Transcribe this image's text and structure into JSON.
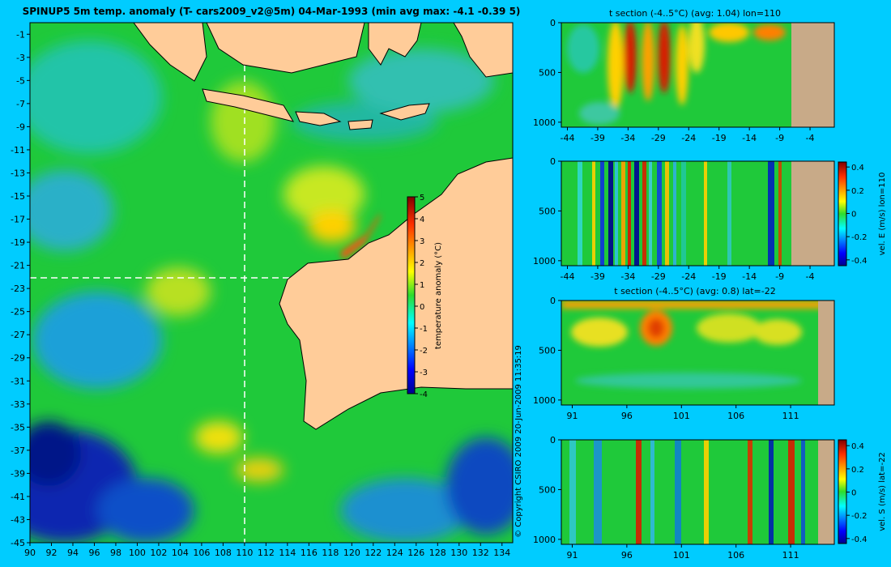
{
  "chart_data": [
    {
      "type": "heatmap",
      "title": "SPINUP5 5m temp. anomaly (T- cars2009_v2@5m) 04-Mar-1993 (min avg max: -4.1 -0.39 5)",
      "x_ticks": [
        "90",
        "92",
        "94",
        "96",
        "98",
        "100",
        "102",
        "104",
        "106",
        "108",
        "110",
        "112",
        "114",
        "116",
        "118",
        "120",
        "122",
        "124",
        "126",
        "128",
        "130",
        "132",
        "134"
      ],
      "y_ticks": [
        "-1",
        "-3",
        "-5",
        "-7",
        "-9",
        "-11",
        "-13",
        "-15",
        "-17",
        "-19",
        "-21",
        "-23",
        "-25",
        "-27",
        "-29",
        "-31",
        "-33",
        "-35",
        "-37",
        "-39",
        "-41",
        "-43",
        "-45"
      ],
      "xlim": [
        90,
        135
      ],
      "ylim": [
        -45,
        0
      ],
      "section_lines": {
        "lon": 110,
        "lat": -22
      },
      "colorbar": {
        "label": "temperature anomaly (°C)",
        "ticks": [
          "5",
          "4",
          "3",
          "2",
          "1",
          "0",
          "-1",
          "-2",
          "-3",
          "-4"
        ],
        "range": [
          -4,
          5
        ]
      },
      "copyright": "© Copyright CSIRO 2009    20-Jun-2009 11:35:19"
    },
    {
      "type": "heatmap",
      "title": "t section (-4..5°C) (avg: 1.04) lon=110",
      "x_ticks": [
        "-44",
        "-39",
        "-34",
        "-29",
        "-24",
        "-19",
        "-14",
        "-9",
        "-4"
      ],
      "y_ticks": [
        "0",
        "500",
        "1000"
      ],
      "xlim": [
        -45,
        0
      ],
      "ylim": [
        1050,
        0
      ]
    },
    {
      "type": "heatmap",
      "title": "",
      "x_ticks": [
        "-44",
        "-39",
        "-34",
        "-29",
        "-24",
        "-19",
        "-14",
        "-9",
        "-4"
      ],
      "y_ticks": [
        "0",
        "500",
        "1000"
      ],
      "xlim": [
        -45,
        0
      ],
      "ylim": [
        1050,
        0
      ],
      "colorbar": {
        "label": "vel. E (m/s) lon=110",
        "ticks": [
          "0.4",
          "0.2",
          "0",
          "-0.2",
          "-0.4"
        ],
        "range": [
          -0.45,
          0.45
        ]
      }
    },
    {
      "type": "heatmap",
      "title": "t section (-4..5°C) (avg: 0.8) lat=-22",
      "x_ticks": [
        "91",
        "96",
        "101",
        "106",
        "111"
      ],
      "y_ticks": [
        "0",
        "500",
        "1000"
      ],
      "xlim": [
        90,
        115
      ],
      "ylim": [
        1050,
        0
      ]
    },
    {
      "type": "heatmap",
      "title": "",
      "x_ticks": [
        "91",
        "96",
        "101",
        "106",
        "111"
      ],
      "y_ticks": [
        "0",
        "500",
        "1000"
      ],
      "xlim": [
        90,
        115
      ],
      "ylim": [
        1050,
        0
      ],
      "colorbar": {
        "label": "vel. S (m/s) lat=-22",
        "ticks": [
          "0.4",
          "0.2",
          "0",
          "-0.2",
          "-0.4"
        ],
        "range": [
          -0.45,
          0.45
        ]
      }
    }
  ]
}
